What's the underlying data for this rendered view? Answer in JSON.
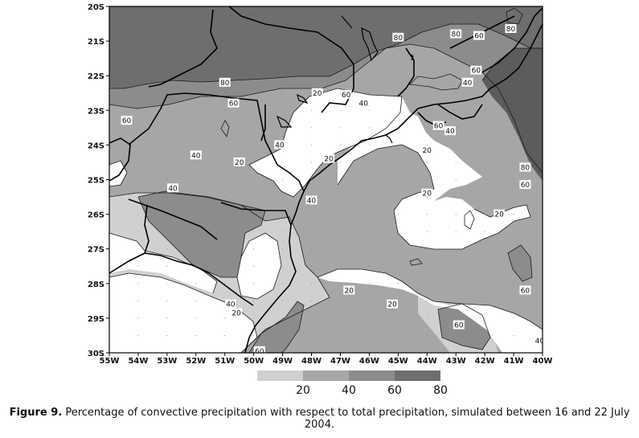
{
  "map": {
    "lat_ticks": [
      "20S",
      "21S",
      "22S",
      "23S",
      "24S",
      "25S",
      "26S",
      "27S",
      "28S",
      "29S",
      "30S"
    ],
    "lon_ticks": [
      "55W",
      "54W",
      "53W",
      "52W",
      "51W",
      "50W",
      "49W",
      "48W",
      "47W",
      "46W",
      "45W",
      "44W",
      "43W",
      "42W",
      "41W",
      "40W"
    ],
    "lat_range": [
      -30,
      -20
    ],
    "lon_range": [
      -55,
      -40
    ],
    "contour_levels": [
      20,
      40,
      60,
      80
    ],
    "contour_labels": [
      {
        "value": "80",
        "lon": -45.0,
        "lat": -20.9
      },
      {
        "value": "80",
        "lon": -41.1,
        "lat": -20.65
      },
      {
        "value": "60",
        "lon": -42.2,
        "lat": -20.85
      },
      {
        "value": "80",
        "lon": -43.0,
        "lat": -20.8
      },
      {
        "value": "80",
        "lon": -51.0,
        "lat": -22.2
      },
      {
        "value": "60",
        "lon": -50.7,
        "lat": -22.8
      },
      {
        "value": "60",
        "lon": -54.4,
        "lat": -23.3
      },
      {
        "value": "20",
        "lon": -47.8,
        "lat": -22.5
      },
      {
        "value": "60",
        "lon": -46.8,
        "lat": -22.55
      },
      {
        "value": "40",
        "lon": -46.2,
        "lat": -22.8
      },
      {
        "value": "60",
        "lon": -42.3,
        "lat": -21.85
      },
      {
        "value": "40",
        "lon": -42.6,
        "lat": -22.2
      },
      {
        "value": "60",
        "lon": -43.6,
        "lat": -23.45
      },
      {
        "value": "40",
        "lon": -43.2,
        "lat": -23.6
      },
      {
        "value": "40",
        "lon": -49.1,
        "lat": -24.0
      },
      {
        "value": "40",
        "lon": -52.0,
        "lat": -24.3
      },
      {
        "value": "20",
        "lon": -50.5,
        "lat": -24.5
      },
      {
        "value": "20",
        "lon": -47.4,
        "lat": -24.4
      },
      {
        "value": "20",
        "lon": -44.0,
        "lat": -24.15
      },
      {
        "value": "40",
        "lon": -52.8,
        "lat": -25.25
      },
      {
        "value": "40",
        "lon": -48.0,
        "lat": -25.6
      },
      {
        "value": "20",
        "lon": -44.0,
        "lat": -25.4
      },
      {
        "value": "80",
        "lon": -40.6,
        "lat": -24.65
      },
      {
        "value": "60",
        "lon": -40.6,
        "lat": -25.15
      },
      {
        "value": "20",
        "lon": -41.5,
        "lat": -26.0
      },
      {
        "value": "60",
        "lon": -40.6,
        "lat": -28.2
      },
      {
        "value": "20",
        "lon": -46.7,
        "lat": -28.2
      },
      {
        "value": "40",
        "lon": -50.8,
        "lat": -28.6
      },
      {
        "value": "20",
        "lon": -50.6,
        "lat": -28.85
      },
      {
        "value": "20",
        "lon": -45.2,
        "lat": -28.6
      },
      {
        "value": "60",
        "lon": -42.9,
        "lat": -29.2
      },
      {
        "value": "40",
        "lon": -40.1,
        "lat": -29.65
      },
      {
        "value": "60",
        "lon": -49.8,
        "lat": -29.95
      }
    ]
  },
  "legend": {
    "labels": [
      "20",
      "40",
      "60",
      "80"
    ],
    "colors": [
      "#d0d0d0",
      "#a6a6a6",
      "#8c8c8c",
      "#6e6e6e"
    ]
  },
  "colors": {
    "c20": "#d0d0d0",
    "c40": "#a6a6a6",
    "c60": "#8c8c8c",
    "c80": "#6e6e6e",
    "c100": "#5c5c5c"
  },
  "caption": {
    "label": "Figure 9.",
    "text": " Percentage of convective precipitation with respect to total precipitation, simulated between 16 and 22 July 2004."
  }
}
